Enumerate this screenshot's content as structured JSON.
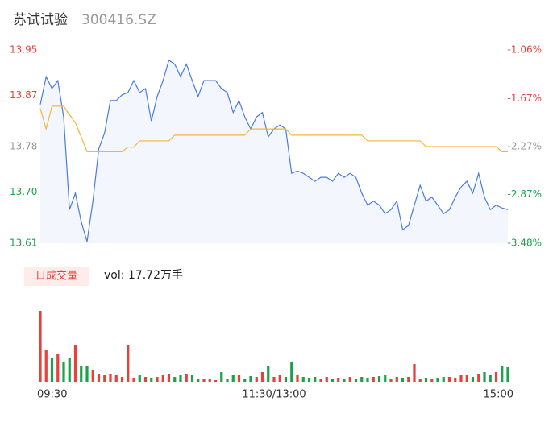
{
  "chart_data": {
    "type": "intraday",
    "title": "苏试试验",
    "subtitle": "300416.SZ",
    "volume_tab": "日成交量",
    "volume_label": "vol: 17.72万手",
    "xlim": [
      0,
      240
    ],
    "xticks": [
      {
        "value": 0,
        "label": "09:30"
      },
      {
        "value": 120,
        "label": "11:30/13:00"
      },
      {
        "value": 240,
        "label": "15:00"
      }
    ],
    "ylim": [
      13.61,
      13.95
    ],
    "yticks": [
      13.95,
      13.87,
      13.78,
      {
        "value": 13.7,
        "label": "13.70"
      },
      13.61
    ],
    "ytick_colors": [
      "#e8413a",
      "#e8413a",
      "#999999",
      "#1aa34a",
      "#1aa34a"
    ],
    "y2lim": [
      -3.48,
      -1.06
    ],
    "y2ticks": [
      {
        "value": -1.06,
        "label": "-1.06%"
      },
      {
        "value": -1.67,
        "label": "-1.67%"
      },
      {
        "value": -2.27,
        "label": "-2.27%"
      },
      {
        "value": -2.87,
        "label": "-2.87%"
      },
      {
        "value": -3.48,
        "label": "-3.48%"
      }
    ],
    "vlim": [
      0,
      9000
    ],
    "up_color": "#e8413a",
    "down_color": "#1aa34a",
    "x": [
      0,
      3,
      6,
      9,
      12,
      15,
      18,
      21,
      24,
      27,
      30,
      33,
      36,
      39,
      42,
      45,
      48,
      51,
      54,
      57,
      60,
      63,
      66,
      69,
      72,
      75,
      78,
      81,
      84,
      87,
      90,
      93,
      96,
      99,
      102,
      105,
      108,
      111,
      114,
      117,
      120,
      123,
      126,
      129,
      132,
      135,
      138,
      141,
      144,
      147,
      150,
      153,
      156,
      159,
      162,
      165,
      168,
      171,
      174,
      177,
      180,
      183,
      186,
      189,
      192,
      195,
      198,
      201,
      204,
      207,
      210,
      213,
      216,
      219,
      222,
      225,
      228,
      231,
      234,
      237,
      240
    ],
    "series": [
      {
        "name": "price",
        "color": "#4a7be0",
        "fill": "#f4f6fd",
        "values": [
          13.854,
          13.903,
          13.882,
          13.896,
          13.832,
          13.669,
          13.698,
          13.648,
          13.613,
          13.684,
          13.776,
          13.804,
          13.861,
          13.861,
          13.871,
          13.875,
          13.896,
          13.875,
          13.882,
          13.825,
          13.868,
          13.896,
          13.932,
          13.925,
          13.903,
          13.925,
          13.896,
          13.868,
          13.896,
          13.896,
          13.896,
          13.882,
          13.875,
          13.84,
          13.861,
          13.832,
          13.811,
          13.832,
          13.84,
          13.797,
          13.811,
          13.818,
          13.811,
          13.733,
          13.737,
          13.733,
          13.726,
          13.719,
          13.726,
          13.726,
          13.719,
          13.733,
          13.726,
          13.733,
          13.726,
          13.698,
          13.677,
          13.684,
          13.677,
          13.662,
          13.669,
          13.684,
          13.634,
          13.641,
          13.677,
          13.712,
          13.684,
          13.691,
          13.677,
          13.662,
          13.669,
          13.691,
          13.709,
          13.719,
          13.698,
          13.733,
          13.691,
          13.669,
          13.677,
          13.672,
          13.669
        ]
      },
      {
        "name": "average",
        "color": "#f5b43c",
        "values": [
          13.847,
          13.811,
          13.851,
          13.851,
          13.851,
          13.836,
          13.822,
          13.797,
          13.771,
          13.771,
          13.771,
          13.771,
          13.771,
          13.771,
          13.771,
          13.779,
          13.779,
          13.79,
          13.79,
          13.79,
          13.79,
          13.79,
          13.79,
          13.8,
          13.8,
          13.8,
          13.8,
          13.8,
          13.8,
          13.8,
          13.8,
          13.8,
          13.8,
          13.8,
          13.8,
          13.8,
          13.811,
          13.811,
          13.811,
          13.811,
          13.811,
          13.811,
          13.811,
          13.8,
          13.8,
          13.8,
          13.8,
          13.8,
          13.8,
          13.8,
          13.8,
          13.8,
          13.8,
          13.8,
          13.8,
          13.8,
          13.79,
          13.79,
          13.79,
          13.79,
          13.79,
          13.79,
          13.79,
          13.79,
          13.79,
          13.79,
          13.78,
          13.78,
          13.78,
          13.78,
          13.78,
          13.78,
          13.78,
          13.78,
          13.78,
          13.78,
          13.78,
          13.78,
          13.78,
          13.771,
          13.771
        ]
      }
    ],
    "volume": [
      8800,
      4000,
      3000,
      3500,
      2500,
      3000,
      4500,
      2000,
      2000,
      1500,
      1000,
      800,
      1000,
      800,
      600,
      4500,
      500,
      800,
      600,
      500,
      600,
      800,
      1000,
      600,
      800,
      1000,
      800,
      400,
      300,
      300,
      200,
      1200,
      300,
      800,
      800,
      400,
      700,
      600,
      1200,
      2000,
      600,
      800,
      600,
      2500,
      800,
      600,
      500,
      600,
      400,
      600,
      400,
      500,
      400,
      600,
      300,
      600,
      500,
      600,
      700,
      800,
      400,
      600,
      500,
      600,
      2200,
      400,
      500,
      300,
      500,
      600,
      600,
      500,
      800,
      800,
      600,
      1000,
      1200,
      800,
      1200,
      2000,
      1800
    ]
  }
}
